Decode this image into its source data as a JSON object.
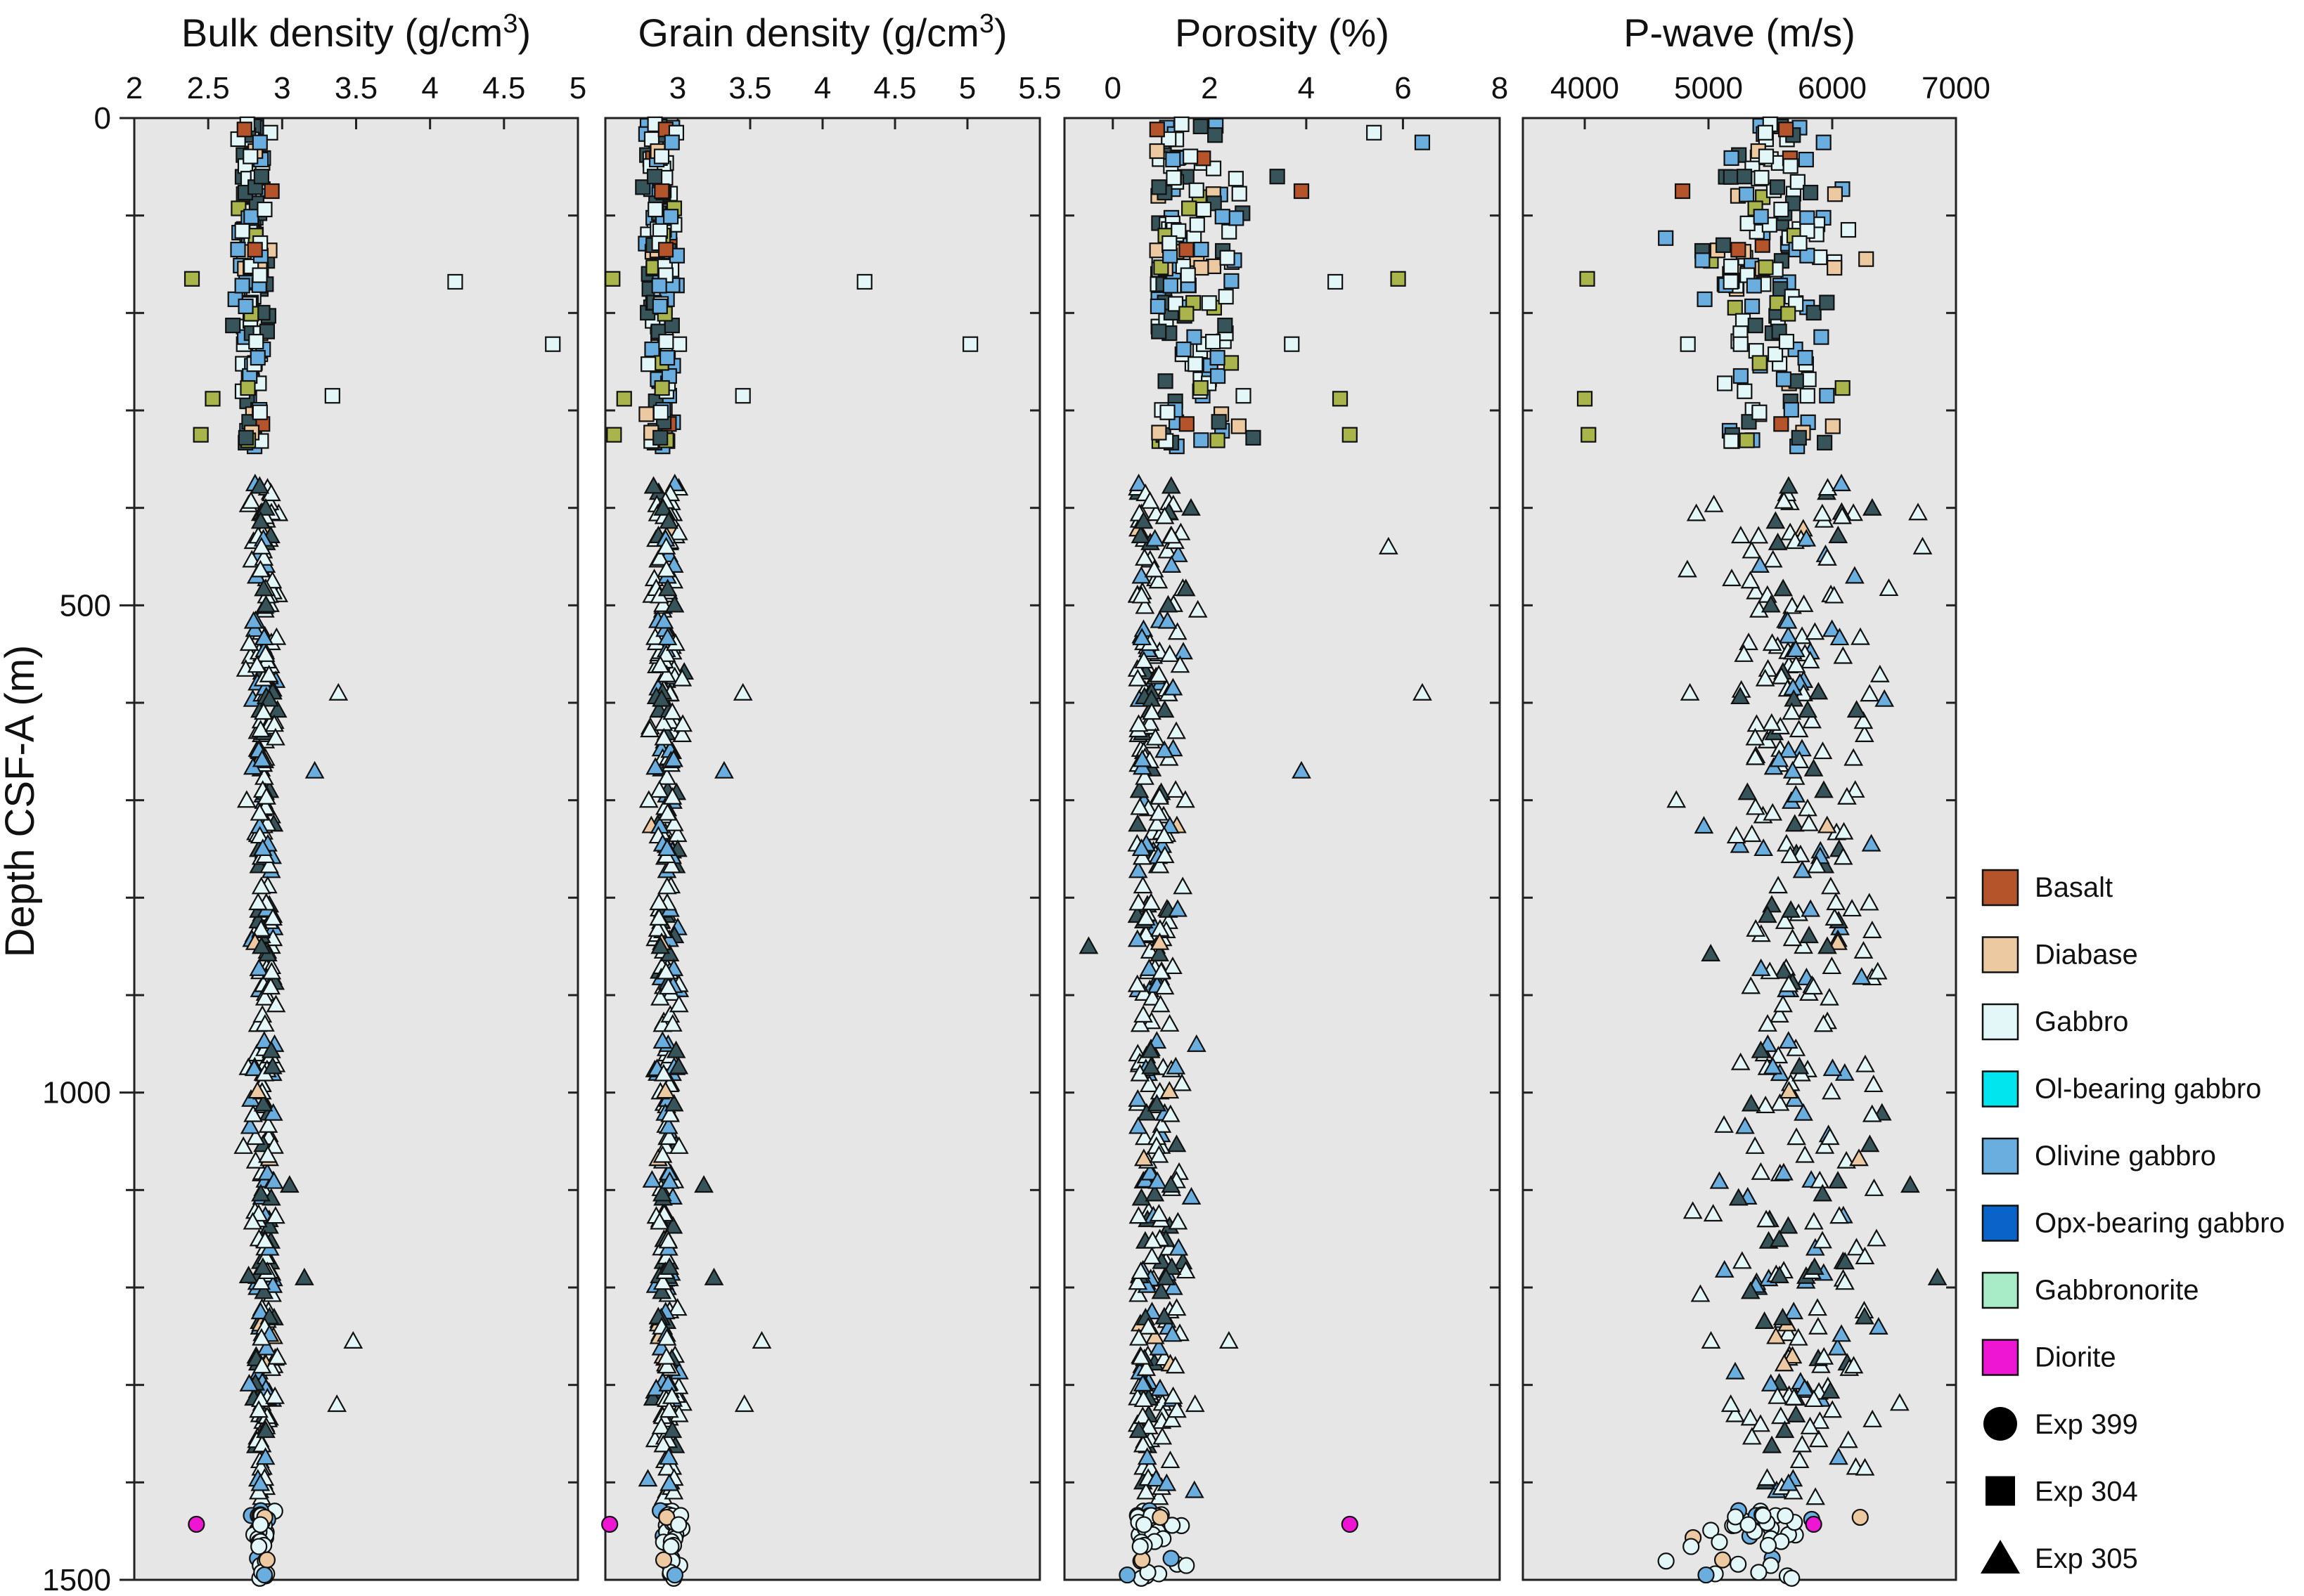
{
  "chart_data": {
    "type": "scatter",
    "y_axis": {
      "label": "Depth CSF-A (m)",
      "range": [
        0,
        1500
      ],
      "inverted": true,
      "ticks": [
        0,
        500,
        1000,
        1500
      ],
      "minor_ticks": [
        100,
        200,
        300,
        400,
        600,
        700,
        800,
        900,
        1100,
        1200,
        1300,
        1400
      ]
    },
    "panels": [
      {
        "key": "bulk",
        "title_main": "Bulk density (g/cm",
        "title_sup": "3",
        "title_end": ")",
        "xlim": [
          2,
          5
        ],
        "ticks": [
          {
            "v": 2,
            "label": "2"
          },
          {
            "v": 2.5,
            "label": "2.5"
          },
          {
            "v": 3,
            "label": "3"
          },
          {
            "v": 3.5,
            "label": "3.5"
          },
          {
            "v": 4,
            "label": "4"
          },
          {
            "v": 4.5,
            "label": "4.5"
          },
          {
            "v": 5,
            "label": "5"
          }
        ]
      },
      {
        "key": "grain",
        "title_main": "Grain density (g/cm",
        "title_sup": "3",
        "title_end": ")",
        "xlim": [
          2.5,
          5.5
        ],
        "ticks": [
          {
            "v": 3,
            "label": "3"
          },
          {
            "v": 3.5,
            "label": "3.5"
          },
          {
            "v": 4,
            "label": "4"
          },
          {
            "v": 4.5,
            "label": "4.5"
          },
          {
            "v": 5,
            "label": "5"
          },
          {
            "v": 5.5,
            "label": "5.5"
          }
        ]
      },
      {
        "key": "porosity",
        "title_main": "Porosity (%)",
        "title_sup": "",
        "title_end": "",
        "xlim": [
          -1,
          8
        ],
        "ticks": [
          {
            "v": 0,
            "label": "0"
          },
          {
            "v": 2,
            "label": "2"
          },
          {
            "v": 4,
            "label": "4"
          },
          {
            "v": 6,
            "label": "6"
          },
          {
            "v": 8,
            "label": "8"
          }
        ]
      },
      {
        "key": "pwave",
        "title_main": "P-wave (m/s)",
        "title_sup": "",
        "title_end": "",
        "xlim": [
          3500,
          7000
        ],
        "ticks": [
          {
            "v": 4000,
            "label": "4000"
          },
          {
            "v": 5000,
            "label": "5000"
          },
          {
            "v": 6000,
            "label": "6000"
          },
          {
            "v": 7000,
            "label": "7000"
          }
        ]
      }
    ],
    "lithology_colors": {
      "basalt": "#b5532b",
      "diabase": "#ecc9a0",
      "gabbro": "#e3f7f8",
      "ol-bearing-gabbro": "#00e5ee",
      "olivine-gabbro": "#6aaee0",
      "opx-bearing-gabbro": "#0a63c9",
      "gabbronorite": "#a7ecc7",
      "diorite": "#ee16d2",
      "olive-dark-gabbro": "#a9b54a",
      "dark-gabbro": "#37545a"
    },
    "legend": {
      "placement": "right",
      "lithologies": [
        {
          "label": "Basalt",
          "color": "#b5532b"
        },
        {
          "label": "Diabase",
          "color": "#ecc9a0"
        },
        {
          "label": "Gabbro",
          "color": "#e3f7f8"
        },
        {
          "label": "Ol-bearing gabbro",
          "color": "#00e5ee"
        },
        {
          "label": "Olivine gabbro",
          "color": "#6aaee0"
        },
        {
          "label": "Opx-bearing gabbro",
          "color": "#0a63c9"
        },
        {
          "label": "Gabbronorite",
          "color": "#a7ecc7"
        },
        {
          "label": "Diorite",
          "color": "#ee16d2"
        }
      ],
      "expeditions": [
        {
          "label": "Exp 399",
          "marker": "circle"
        },
        {
          "label": "Exp 304",
          "marker": "square"
        },
        {
          "label": "Exp 305",
          "marker": "triangle"
        }
      ]
    },
    "series": [
      {
        "expedition": "Exp 304",
        "marker": "square",
        "depth_range": [
          0,
          340
        ],
        "bulk": {
          "center": 2.8,
          "spread": 0.07
        },
        "grain": {
          "center": 2.88,
          "spread": 0.07
        },
        "porosity": {
          "center": 1.1,
          "spread": 0.6
        },
        "pwave": {
          "center": 5500,
          "spread": 260
        },
        "notable_points": [
          {
            "depth": 165,
            "bulk": 2.39,
            "grain": 2.55,
            "porosity": 5.9,
            "pwave": 4020,
            "lith": "olive-dark-gabbro"
          },
          {
            "depth": 168,
            "bulk": 4.17,
            "grain": 4.29,
            "porosity": 4.6,
            "pwave": 5180,
            "lith": "gabbro"
          },
          {
            "depth": 232,
            "bulk": 4.83,
            "grain": 5.02,
            "porosity": 3.7,
            "pwave": 5260,
            "lith": "gabbro"
          },
          {
            "depth": 285,
            "bulk": 3.34,
            "grain": 3.45,
            "porosity": 2.7,
            "pwave": 5800,
            "lith": "gabbro"
          },
          {
            "depth": 288,
            "bulk": 2.53,
            "grain": 2.63,
            "porosity": 4.7,
            "pwave": 4000,
            "lith": "olive-dark-gabbro"
          },
          {
            "depth": 325,
            "bulk": 2.45,
            "grain": 2.56,
            "porosity": 4.9,
            "pwave": 4030,
            "lith": "olive-dark-gabbro"
          },
          {
            "depth": 15,
            "bulk": 2.92,
            "grain": 2.99,
            "porosity": 5.4,
            "pwave": 5460,
            "lith": "gabbro"
          },
          {
            "depth": 25,
            "bulk": 2.85,
            "grain": 2.96,
            "porosity": 6.4,
            "pwave": 5930,
            "lith": "olivine-gabbro"
          },
          {
            "depth": 75,
            "bulk": 2.93,
            "grain": 2.89,
            "porosity": 3.9,
            "pwave": 4790,
            "lith": "basalt"
          },
          {
            "depth": 60,
            "bulk": 2.86,
            "grain": 2.84,
            "porosity": 3.4,
            "pwave": 5290,
            "lith": "dark-gabbro"
          }
        ]
      },
      {
        "expedition": "Exp 305",
        "marker": "triangle",
        "depth_range": [
          375,
          1420
        ],
        "bulk": {
          "center": 2.88,
          "spread": 0.06
        },
        "grain": {
          "center": 2.92,
          "spread": 0.06
        },
        "porosity": {
          "center": 0.7,
          "spread": 0.45
        },
        "pwave": {
          "center": 5750,
          "spread": 330
        },
        "notable_points": [
          {
            "depth": 590,
            "bulk": 3.38,
            "grain": 3.45,
            "porosity": 6.4,
            "pwave": 4850,
            "lith": "gabbro"
          },
          {
            "depth": 670,
            "bulk": 3.22,
            "grain": 3.32,
            "porosity": 3.9,
            "pwave": 5680,
            "lith": "olivine-gabbro"
          },
          {
            "depth": 1255,
            "bulk": 3.48,
            "grain": 3.58,
            "porosity": 2.4,
            "pwave": 5020,
            "lith": "gabbro"
          },
          {
            "depth": 1320,
            "bulk": 3.37,
            "grain": 3.46,
            "porosity": 1.7,
            "pwave": 5180,
            "lith": "gabbro"
          },
          {
            "depth": 850,
            "bulk": 2.86,
            "grain": 2.88,
            "porosity": -0.5,
            "pwave": 5960,
            "lith": "dark-gabbro"
          },
          {
            "depth": 440,
            "bulk": 2.86,
            "grain": 2.92,
            "porosity": 5.7,
            "pwave": 6730,
            "lith": "gabbro"
          },
          {
            "depth": 1095,
            "bulk": 3.05,
            "grain": 3.18,
            "porosity": 1.2,
            "pwave": 6630,
            "lith": "dark-gabbro"
          },
          {
            "depth": 1190,
            "bulk": 3.15,
            "grain": 3.25,
            "porosity": 1.1,
            "pwave": 6850,
            "lith": "dark-gabbro"
          },
          {
            "depth": 700,
            "bulk": 2.76,
            "grain": 2.8,
            "porosity": 1.5,
            "pwave": 4740,
            "lith": "gabbro"
          }
        ]
      },
      {
        "expedition": "Exp 399",
        "marker": "circle",
        "depth_range": [
          1425,
          1500
        ],
        "bulk": {
          "center": 2.85,
          "spread": 0.04
        },
        "grain": {
          "center": 2.95,
          "spread": 0.04
        },
        "porosity": {
          "center": 0.7,
          "spread": 0.4
        },
        "pwave": {
          "center": 5400,
          "spread": 250
        },
        "notable_points": [
          {
            "depth": 1443,
            "bulk": 2.42,
            "grain": 2.53,
            "porosity": 4.9,
            "pwave": 5850,
            "lith": "diorite"
          },
          {
            "depth": 1495,
            "bulk": 2.88,
            "grain": 2.98,
            "porosity": 0.3,
            "pwave": 4980,
            "lith": "olivine-gabbro"
          }
        ]
      }
    ]
  }
}
